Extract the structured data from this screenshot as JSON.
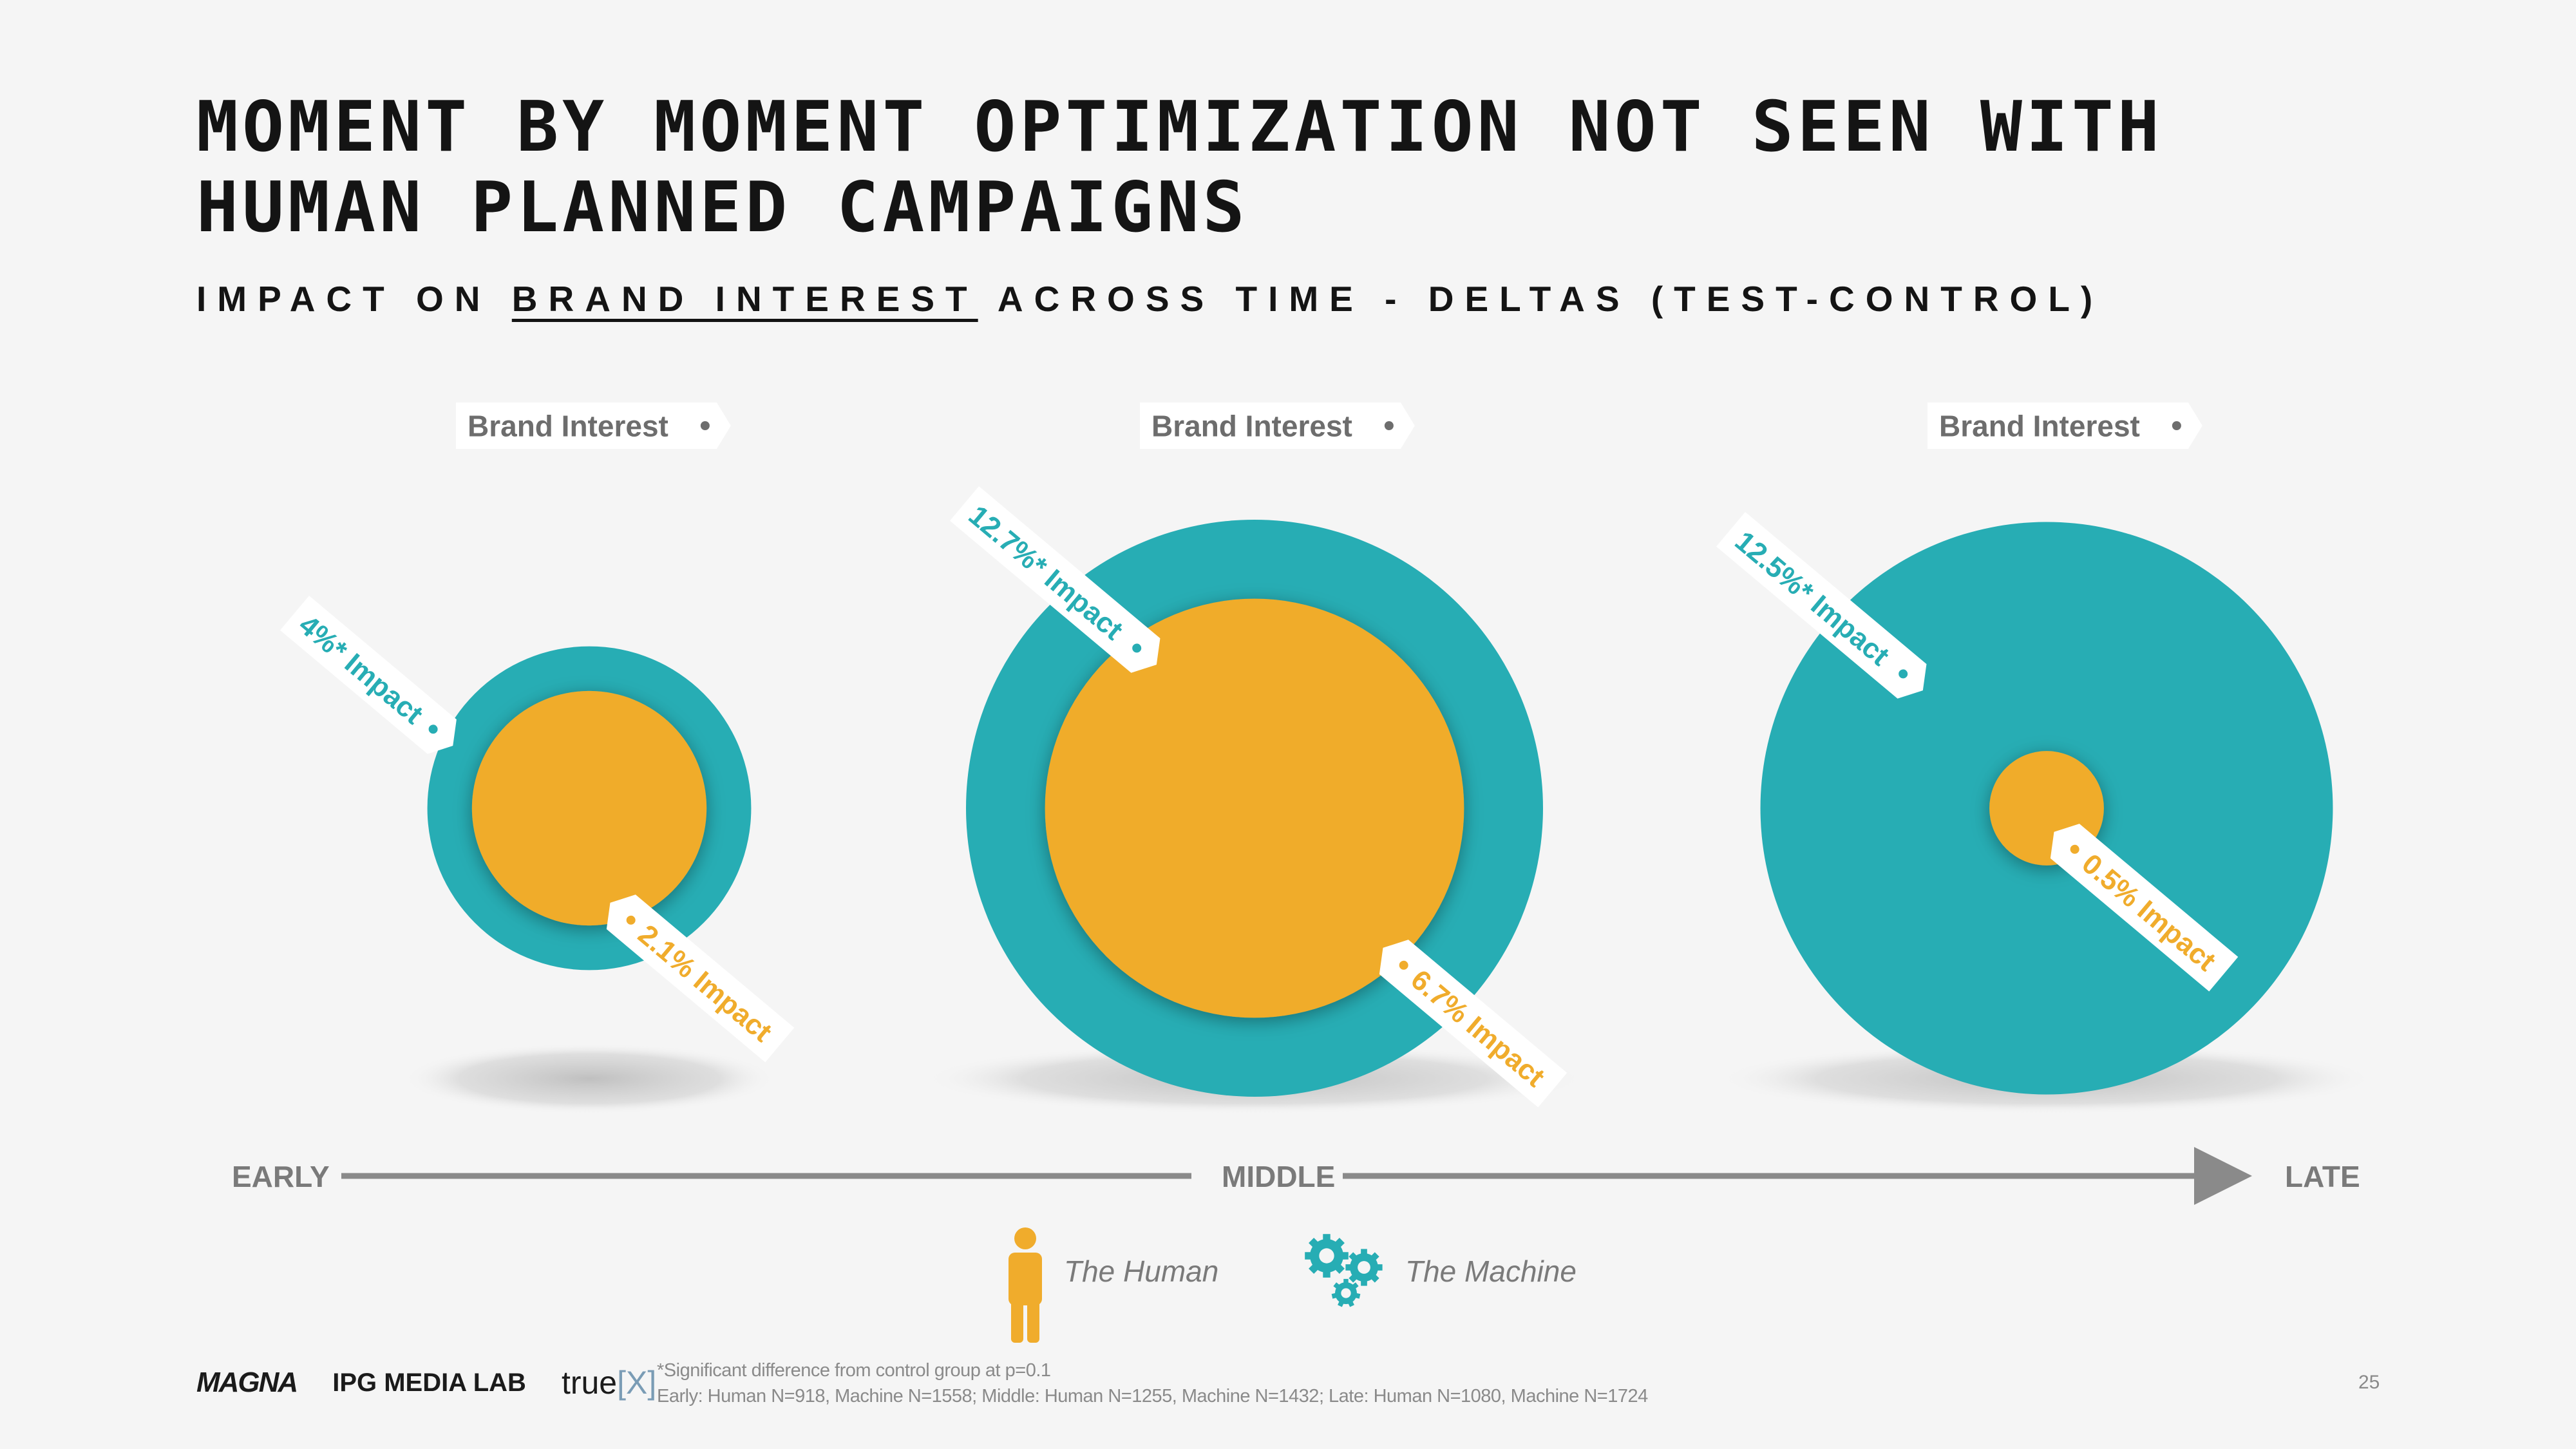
{
  "slide": {
    "title": "MOMENT BY MOMENT OPTIMIZATION NOT SEEN WITH HUMAN PLANNED CAMPAIGNS",
    "subtitle_pre": "IMPACT ON ",
    "subtitle_underlined": "BRAND INTEREST",
    "subtitle_post": " ACROSS TIME - DELTAS (TEST-CONTROL)",
    "page_number": "25"
  },
  "footer": {
    "logos": {
      "magna": "MAGNA",
      "ipg": "IPG MEDIA LAB",
      "truex_pre": "true",
      "truex_br": "[X]"
    },
    "footnote_line1": "*Significant difference from control group at p=0.1",
    "footnote_line2": "Early: Human N=918, Machine N=1558; Middle: Human N=1255, Machine N=1432; Late: Human N=1080, Machine N=1724"
  },
  "colors": {
    "machine": "#27adb4",
    "human": "#f0ac2c",
    "tag_bg": "#ffffff",
    "timeline": "#8a8a8a",
    "shadow": "#c8c8c8"
  },
  "legend": {
    "human_label": "The Human",
    "human_icon": "person-icon",
    "machine_label": "The Machine",
    "machine_icon": "gears-icon"
  },
  "chart_data": {
    "type": "nested-bubble",
    "metric": "Brand Interest",
    "categories": [
      "EARLY",
      "MIDDLE",
      "LATE"
    ],
    "series": [
      {
        "name": "The Machine",
        "values": [
          4.0,
          12.7,
          12.5
        ],
        "labels": [
          "4%* Impact",
          "12.7%* Impact",
          "12.5%* Impact"
        ]
      },
      {
        "name": "The Human",
        "values": [
          2.1,
          6.7,
          0.5
        ],
        "labels": [
          "2.1% Impact",
          "6.7% Impact",
          "0.5% Impact"
        ]
      }
    ],
    "metric_labels": [
      "Brand Interest",
      "Brand Interest",
      "Brand Interest"
    ]
  }
}
